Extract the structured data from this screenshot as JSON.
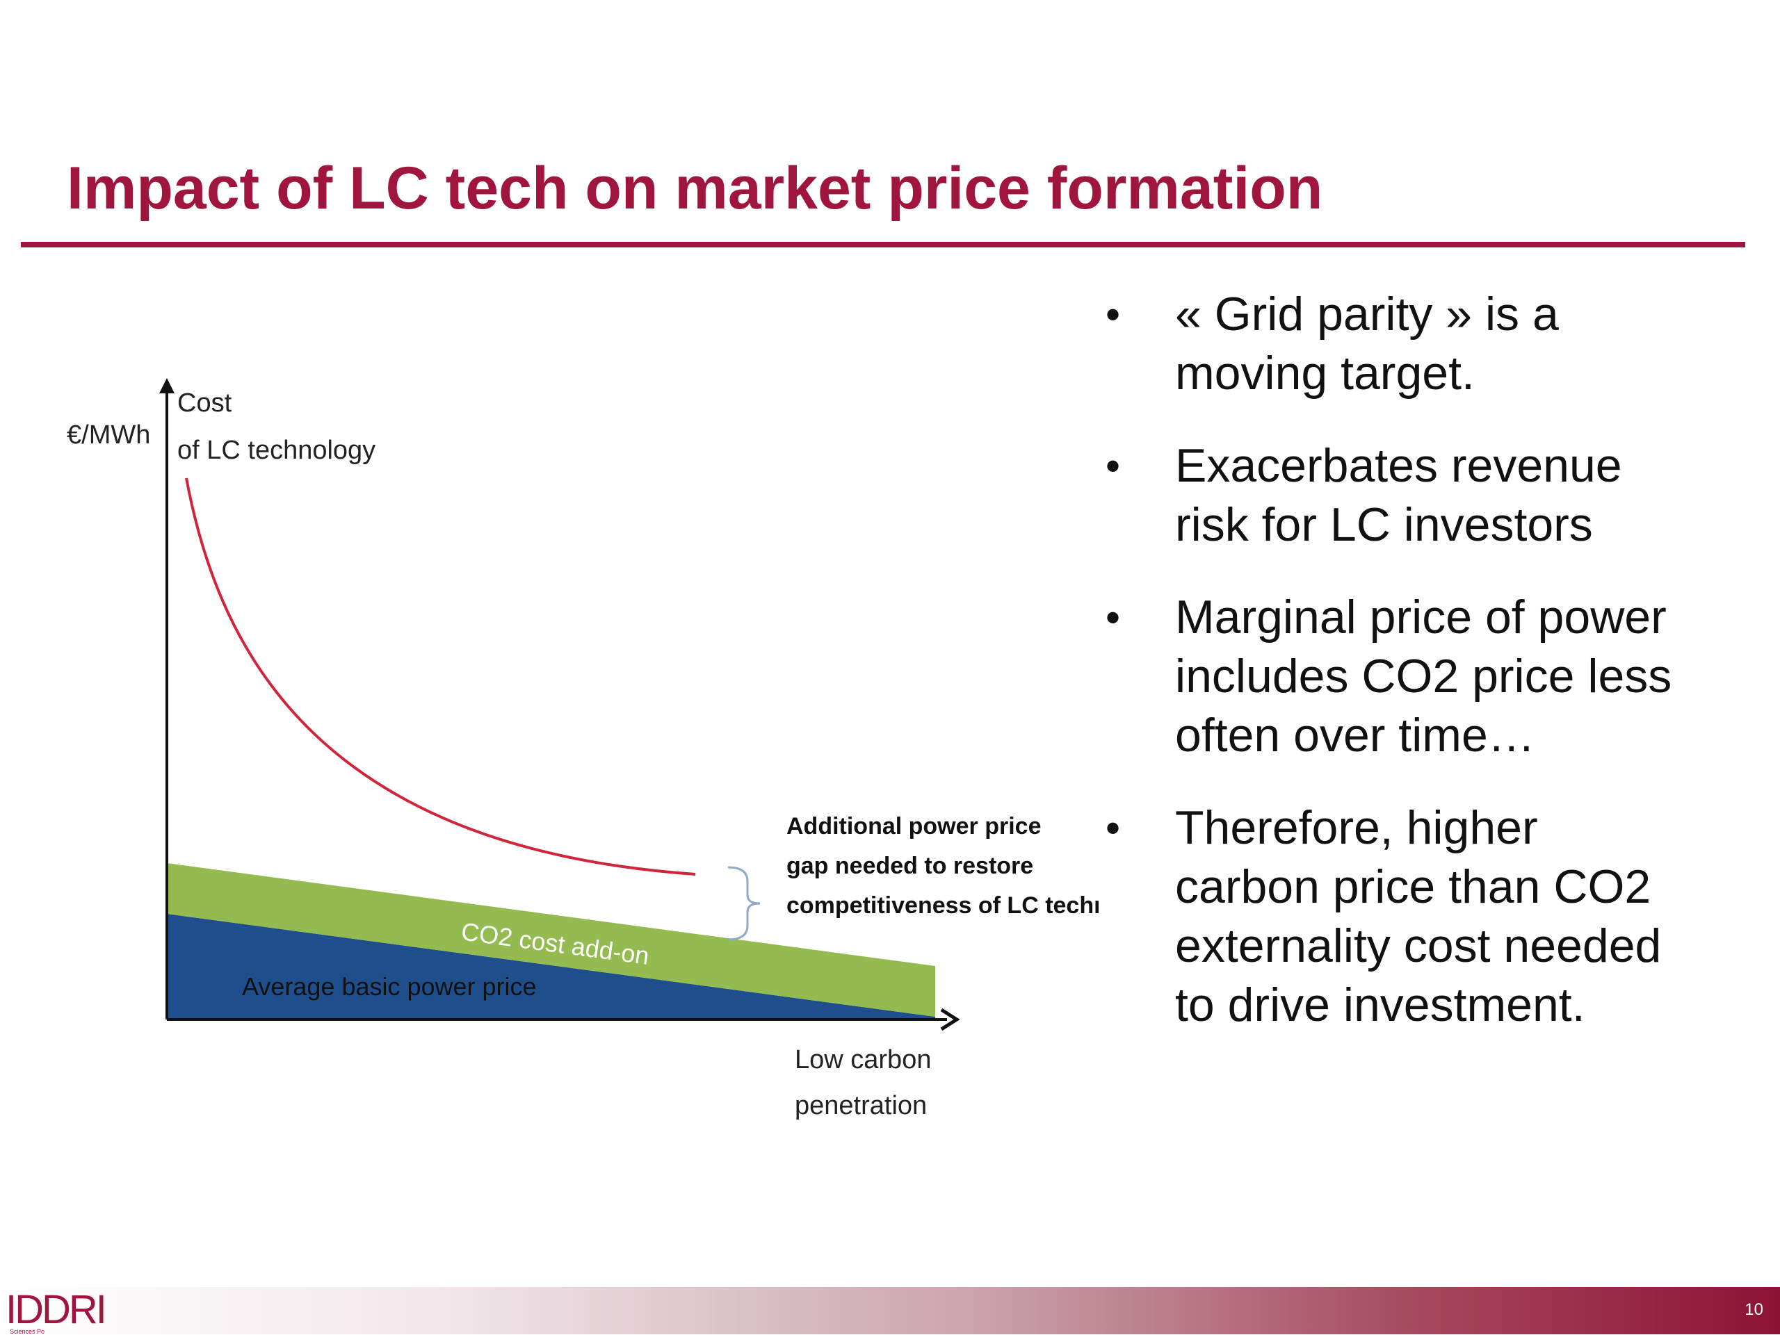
{
  "slide": {
    "title": "Impact of LC tech on market price formation",
    "page_number": "10",
    "logo": {
      "name": "IDDRI",
      "subtitle": "Sciences Po"
    }
  },
  "diagram": {
    "y_unit": "€/MWh",
    "cost_label_line1": "Cost",
    "cost_label_line2": "of LC technology",
    "co2_label": "CO2 cost add-on",
    "basic_price_label": "Average basic power price",
    "gap_label_lines": [
      "Additional power price",
      "gap needed to restore",
      "competitiveness of LC techn."
    ],
    "x_label_line1": "Low carbon",
    "x_label_line2": "penetration",
    "colors": {
      "cost_curve": "#d0263b",
      "co2_band": "#93bb4f",
      "basic_price": "#1f4e8c",
      "bracket": "#8fa9c8",
      "axis": "#111111"
    }
  },
  "bullets": [
    {
      "lines": [
        "« Grid parity » is a",
        "moving target."
      ]
    },
    {
      "lines": [
        "Exacerbates revenue",
        "risk for LC investors"
      ]
    },
    {
      "lines": [
        "Marginal price of power",
        "includes CO2 price less",
        "often over time…"
      ]
    },
    {
      "lines": [
        "Therefore, higher",
        "carbon price than CO2",
        "externality cost needed",
        "to drive investment."
      ]
    }
  ],
  "bullet_glyph": "•"
}
